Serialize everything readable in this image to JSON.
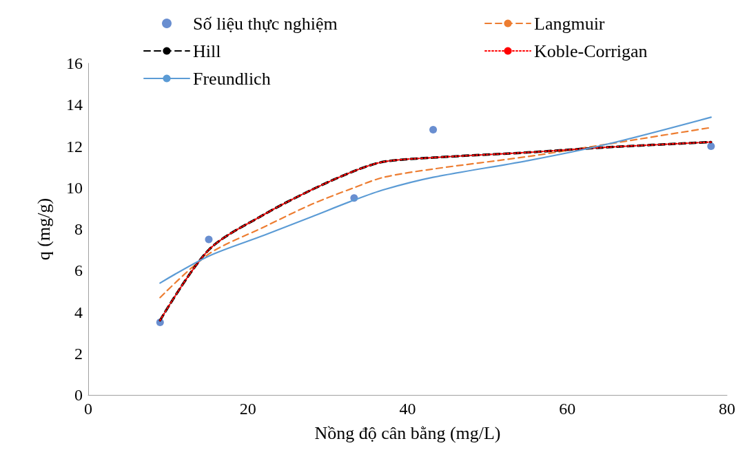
{
  "chart_data": {
    "type": "line",
    "xlabel": "Nồng độ cân bằng (mg/L)",
    "ylabel": "q (mg/g)",
    "xlim": [
      0,
      80
    ],
    "xticks": [
      0,
      20,
      40,
      60,
      80
    ],
    "ylim": [
      0,
      16
    ],
    "yticks": [
      0,
      2,
      4,
      6,
      8,
      10,
      12,
      14,
      16
    ],
    "grid": false,
    "legend": "top",
    "series": [
      {
        "name": "Số liệu thực nghiệm",
        "type": "scatter",
        "color": "#4472c4",
        "marker": "circle",
        "x": [
          9,
          15.1,
          33.3,
          43.2,
          78
        ],
        "values": [
          3.5,
          7.5,
          9.5,
          12.8,
          12
        ]
      },
      {
        "name": "Langmuir",
        "color": "#ed7d31",
        "line_style": "dashed",
        "marker": "none",
        "x": [
          9,
          15.1,
          22,
          28,
          33.3,
          37,
          43.2,
          55,
          65,
          78
        ],
        "values": [
          4.7,
          6.8,
          8.1,
          9.2,
          10,
          10.5,
          10.9,
          11.5,
          12.1,
          12.9
        ]
      },
      {
        "name": "Hill",
        "color": "#000000",
        "line_style": "dashed",
        "marker": "none",
        "x": [
          9,
          15.1,
          22,
          28,
          33.3,
          37,
          43.2,
          55,
          65,
          78
        ],
        "values": [
          3.6,
          7,
          8.7,
          9.9,
          10.8,
          11.25,
          11.45,
          11.7,
          11.95,
          12.2
        ]
      },
      {
        "name": "Koble-Corrigan",
        "color": "#ff0000",
        "line_style": "dotted",
        "marker": "none",
        "x": [
          9,
          15.1,
          22,
          28,
          33.3,
          37,
          43.2,
          55,
          65,
          78
        ],
        "values": [
          3.6,
          7,
          8.7,
          9.9,
          10.8,
          11.25,
          11.45,
          11.7,
          11.95,
          12.2
        ]
      },
      {
        "name": "Freundlich",
        "color": "#5b9bd5",
        "line_style": "solid",
        "marker": "none",
        "x": [
          9,
          15.1,
          22,
          28,
          33.3,
          37,
          43.2,
          55,
          65,
          78
        ],
        "values": [
          5.4,
          6.7,
          7.7,
          8.6,
          9.4,
          9.9,
          10.5,
          11.3,
          12.1,
          13.4
        ]
      }
    ]
  }
}
